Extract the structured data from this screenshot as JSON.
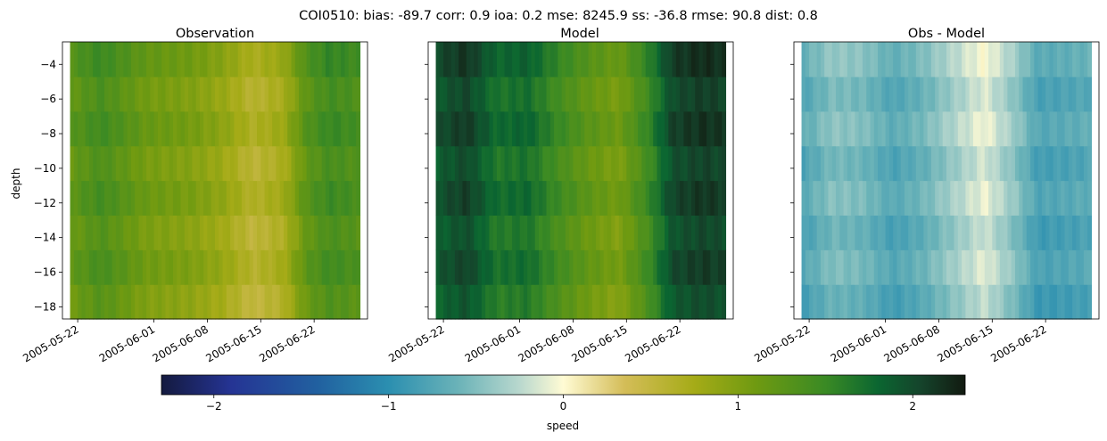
{
  "suptitle": "COI0510: bias: -89.7  corr: 0.9  ioa: 0.2  mse: 8245.9  ss: -36.8  rmse: 90.8  dist: 0.8",
  "chart_data": [
    {
      "type": "heatmap",
      "title": "Observation",
      "ylabel": "depth",
      "x_ticks": [
        "2005-05-22",
        "2005-06-01",
        "2005-06-08",
        "2005-06-15",
        "2005-06-22"
      ],
      "y_ticks": [
        -4,
        -6,
        -8,
        -10,
        -12,
        -14,
        -16,
        -18
      ],
      "xlim": [
        "2005-05-20",
        "2005-06-29"
      ],
      "ylim": [
        -18.7,
        -2.7
      ],
      "data_range": [
        "2005-05-21",
        "2005-06-28"
      ],
      "depth_range": [
        -18.7,
        -2.7
      ],
      "colorscale": "tarn",
      "value_profile": [
        [
          "2005-05-21",
          1.2
        ],
        [
          "2005-05-25",
          1.4
        ],
        [
          "2005-05-31",
          1.1
        ],
        [
          "2005-06-06",
          1.0
        ],
        [
          "2005-06-10",
          0.85
        ],
        [
          "2005-06-14",
          0.6
        ],
        [
          "2005-06-18",
          0.75
        ],
        [
          "2005-06-21",
          1.25
        ],
        [
          "2005-06-24",
          1.45
        ],
        [
          "2005-06-28",
          1.35
        ]
      ]
    },
    {
      "type": "heatmap",
      "title": "Model",
      "ylabel": "",
      "x_ticks": [
        "2005-05-22",
        "2005-06-01",
        "2005-06-08",
        "2005-06-15",
        "2005-06-22"
      ],
      "xlim": [
        "2005-05-20",
        "2005-06-29"
      ],
      "ylim": [
        -18.7,
        -2.7
      ],
      "data_range": [
        "2005-05-21",
        "2005-06-28"
      ],
      "depth_range": [
        -18.7,
        -2.7
      ],
      "colorscale": "tarn",
      "value_profile": [
        [
          "2005-05-21",
          1.9
        ],
        [
          "2005-05-25",
          2.05
        ],
        [
          "2005-05-29",
          1.7
        ],
        [
          "2005-06-02",
          1.75
        ],
        [
          "2005-06-06",
          1.45
        ],
        [
          "2005-06-10",
          1.2
        ],
        [
          "2005-06-14",
          1.05
        ],
        [
          "2005-06-18",
          1.5
        ],
        [
          "2005-06-21",
          2.0
        ],
        [
          "2005-06-25",
          2.1
        ],
        [
          "2005-06-28",
          2.05
        ]
      ]
    },
    {
      "type": "heatmap",
      "title": "Obs - Model",
      "ylabel": "",
      "x_ticks": [
        "2005-05-22",
        "2005-06-01",
        "2005-06-08",
        "2005-06-15",
        "2005-06-22"
      ],
      "xlim": [
        "2005-05-20",
        "2005-06-29"
      ],
      "ylim": [
        -18.7,
        -2.7
      ],
      "data_range": [
        "2005-05-21",
        "2005-06-28"
      ],
      "depth_range": [
        -18.7,
        -2.7
      ],
      "colorscale": "tarn",
      "value_profile": [
        [
          "2005-05-21",
          -0.75
        ],
        [
          "2005-05-25",
          -0.5
        ],
        [
          "2005-05-29",
          -0.55
        ],
        [
          "2005-06-02",
          -0.75
        ],
        [
          "2005-06-06",
          -0.6
        ],
        [
          "2005-06-10",
          -0.35
        ],
        [
          "2005-06-14",
          -0.1
        ],
        [
          "2005-06-18",
          -0.45
        ],
        [
          "2005-06-21",
          -0.8
        ],
        [
          "2005-06-25",
          -0.75
        ],
        [
          "2005-06-28",
          -0.7
        ]
      ]
    }
  ],
  "colorbar": {
    "label": "speed",
    "range": [
      -2.3,
      2.3
    ],
    "ticks": [
      -2,
      -1,
      0,
      1,
      2
    ],
    "tick_labels": [
      "−2",
      "−1",
      "0",
      "1",
      "2"
    ],
    "colors": [
      [
        -2.3,
        "#141a3f"
      ],
      [
        -1.9,
        "#253494"
      ],
      [
        -1.4,
        "#2161a0"
      ],
      [
        -1.0,
        "#2b8fb0"
      ],
      [
        -0.6,
        "#6bb3b8"
      ],
      [
        -0.25,
        "#b9d8ce"
      ],
      [
        0.0,
        "#fffbd4"
      ],
      [
        0.35,
        "#d4bd58"
      ],
      [
        0.75,
        "#a5ab17"
      ],
      [
        1.1,
        "#6f9a11"
      ],
      [
        1.5,
        "#3a8a24"
      ],
      [
        1.8,
        "#0b6631"
      ],
      [
        2.05,
        "#15432b"
      ],
      [
        2.3,
        "#121a10"
      ]
    ]
  }
}
